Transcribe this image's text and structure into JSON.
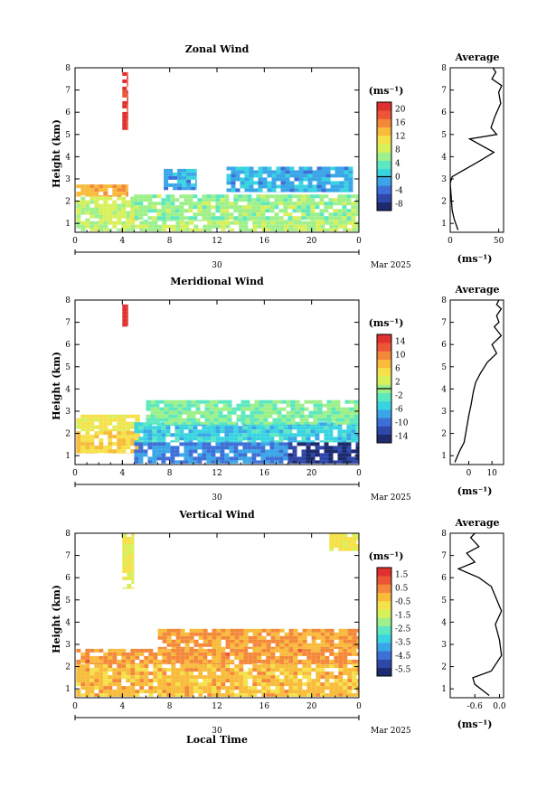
{
  "colors": {
    "palette": [
      "#1c2a6e",
      "#2f47a8",
      "#3d6fd6",
      "#3aa6e8",
      "#38d4e0",
      "#5ee8c0",
      "#9ef08a",
      "#d8f05a",
      "#f5e14a",
      "#f8bb3a",
      "#f4883a",
      "#ec5536",
      "#e0302f"
    ],
    "outline": "#000000",
    "background": "#ffffff"
  },
  "chart_data": [
    {
      "type": "heatmap",
      "title": "Zonal Wind",
      "ylabel": "Height (km)",
      "xlim": [
        0,
        24
      ],
      "ylim": [
        0.6,
        8
      ],
      "x_ticks": [
        "0",
        "4",
        "8",
        "12",
        "16",
        "20",
        "0"
      ],
      "y_ticks": [
        "1",
        "2",
        "3",
        "4",
        "5",
        "6",
        "7",
        "8"
      ],
      "date_label": "30",
      "month_label": "Mar 2025",
      "colorbar": {
        "unit": "(ms⁻¹)",
        "ticks": [
          "20",
          "16",
          "12",
          "8",
          "4",
          "0",
          "-4",
          "-8"
        ],
        "vmin": -10,
        "vmax": 22,
        "zero_line": 0
      },
      "regions": [
        {
          "x0": 0.1,
          "x1": 4.5,
          "y0": 2.2,
          "y1": 2.75,
          "v": 14
        },
        {
          "x0": 0.1,
          "x1": 5.2,
          "y0": 1.1,
          "y1": 2.2,
          "v": 8
        },
        {
          "x0": 5.0,
          "x1": 24,
          "y0": 1.1,
          "y1": 2.3,
          "v": 6
        },
        {
          "x0": 0.1,
          "x1": 24,
          "y0": 0.65,
          "y1": 1.1,
          "v": 7
        },
        {
          "x0": 7.5,
          "x1": 10.3,
          "y0": 2.5,
          "y1": 3.45,
          "v": -1
        },
        {
          "x0": 12.8,
          "x1": 23.5,
          "y0": 2.4,
          "y1": 3.55,
          "v": -1
        },
        {
          "x0": 4.0,
          "x1": 4.5,
          "y0": 5.2,
          "y1": 7.8,
          "v": 20
        }
      ],
      "average": {
        "title": "Average",
        "xlabel": "(ms⁻¹)",
        "xlim": [
          0,
          55
        ],
        "x_ticks": [
          "0",
          "50"
        ],
        "profile_x": [
          8,
          4,
          2,
          1,
          0,
          2,
          10,
          18,
          30,
          45,
          20,
          48,
          42,
          46,
          52,
          50,
          53,
          43,
          47,
          44
        ],
        "profile_y": [
          0.7,
          1.2,
          1.6,
          2.2,
          2.8,
          3.1,
          3.3,
          3.5,
          3.8,
          4.2,
          4.8,
          5.0,
          5.3,
          5.8,
          6.4,
          6.9,
          7.2,
          7.5,
          7.8,
          8.0
        ]
      }
    },
    {
      "type": "heatmap",
      "title": "Meridional Wind",
      "ylabel": "Height (km)",
      "xlim": [
        0,
        24
      ],
      "ylim": [
        0.6,
        8
      ],
      "x_ticks": [
        "0",
        "4",
        "8",
        "12",
        "16",
        "20",
        "0"
      ],
      "y_ticks": [
        "1",
        "2",
        "3",
        "4",
        "5",
        "6",
        "7",
        "8"
      ],
      "date_label": "30",
      "month_label": "Mar 2025",
      "colorbar": {
        "unit": "(ms⁻¹)",
        "ticks": [
          "14",
          "10",
          "6",
          "2",
          "-2",
          "-6",
          "-10",
          "-14"
        ],
        "vmin": -16,
        "vmax": 16,
        "zero_line": 0
      },
      "regions": [
        {
          "x0": 0.1,
          "x1": 5.5,
          "y0": 2.1,
          "y1": 2.85,
          "v": 4
        },
        {
          "x0": 0.1,
          "x1": 5.5,
          "y0": 1.1,
          "y1": 2.1,
          "v": 6
        },
        {
          "x0": 5.0,
          "x1": 24,
          "y0": 1.6,
          "y1": 2.5,
          "v": -5
        },
        {
          "x0": 5.0,
          "x1": 18,
          "y0": 0.65,
          "y1": 1.6,
          "v": -9
        },
        {
          "x0": 18,
          "x1": 24,
          "y0": 0.65,
          "y1": 1.6,
          "v": -14
        },
        {
          "x0": 6.0,
          "x1": 24,
          "y0": 2.4,
          "y1": 3.5,
          "v": -1
        },
        {
          "x0": 4.0,
          "x1": 4.5,
          "y0": 6.8,
          "y1": 7.8,
          "v": 16
        }
      ],
      "average": {
        "title": "Average",
        "xlabel": "(ms⁻¹)",
        "xlim": [
          -8,
          15
        ],
        "x_ticks": [
          "0",
          "10"
        ],
        "profile_x": [
          -6,
          -4,
          -2,
          -1,
          0,
          1,
          2,
          3,
          5,
          8,
          12,
          10,
          14,
          11,
          13,
          12,
          14,
          12,
          13
        ],
        "profile_y": [
          0.7,
          1.2,
          1.6,
          2.2,
          2.8,
          3.3,
          3.9,
          4.3,
          4.7,
          5.2,
          5.6,
          6.0,
          6.4,
          6.8,
          7.0,
          7.3,
          7.6,
          7.8,
          8.0
        ]
      }
    },
    {
      "type": "heatmap",
      "title": "Vertical Wind",
      "ylabel": "Height (km)",
      "xlabel": "Local Time",
      "xlim": [
        0,
        24
      ],
      "ylim": [
        0.6,
        8
      ],
      "x_ticks": [
        "0",
        "4",
        "8",
        "12",
        "16",
        "20",
        "0"
      ],
      "y_ticks": [
        "1",
        "2",
        "3",
        "4",
        "5",
        "6",
        "7",
        "8"
      ],
      "date_label": "30",
      "month_label": "Mar 2025",
      "colorbar": {
        "unit": "(ms⁻¹)",
        "ticks": [
          "1.5",
          "0.5",
          "-0.5",
          "-1.5",
          "-2.5",
          "-3.5",
          "-4.5",
          "-5.5"
        ],
        "vmin": -6,
        "vmax": 2,
        "zero_line": null
      },
      "regions": [
        {
          "x0": 0.1,
          "x1": 24,
          "y0": 2.1,
          "y1": 2.8,
          "v": 0.3
        },
        {
          "x0": 7.0,
          "x1": 24,
          "y0": 2.8,
          "y1": 3.7,
          "v": 0.2
        },
        {
          "x0": 0.1,
          "x1": 24,
          "y0": 0.65,
          "y1": 2.1,
          "v": -0.2
        },
        {
          "x0": 4.0,
          "x1": 5.0,
          "y0": 5.5,
          "y1": 8.0,
          "v": -1.0
        },
        {
          "x0": 21.5,
          "x1": 24,
          "y0": 7.2,
          "y1": 8.0,
          "v": -1.0
        }
      ],
      "average": {
        "title": "Average",
        "xlabel": "(ms⁻¹)",
        "xlim": [
          -1.2,
          0.1
        ],
        "x_ticks": [
          "-0.6",
          "0.0"
        ],
        "profile_x": [
          -0.25,
          -0.6,
          -0.65,
          -0.2,
          0.05,
          0.0,
          -0.1,
          0.05,
          -0.2,
          -0.5,
          -1.0,
          -0.6,
          -0.8,
          -0.5,
          -0.7,
          -0.6
        ],
        "profile_y": [
          0.7,
          1.2,
          1.5,
          1.8,
          2.5,
          3.2,
          3.9,
          4.5,
          5.6,
          6.0,
          6.4,
          6.7,
          7.1,
          7.4,
          7.8,
          8.0
        ]
      }
    }
  ]
}
